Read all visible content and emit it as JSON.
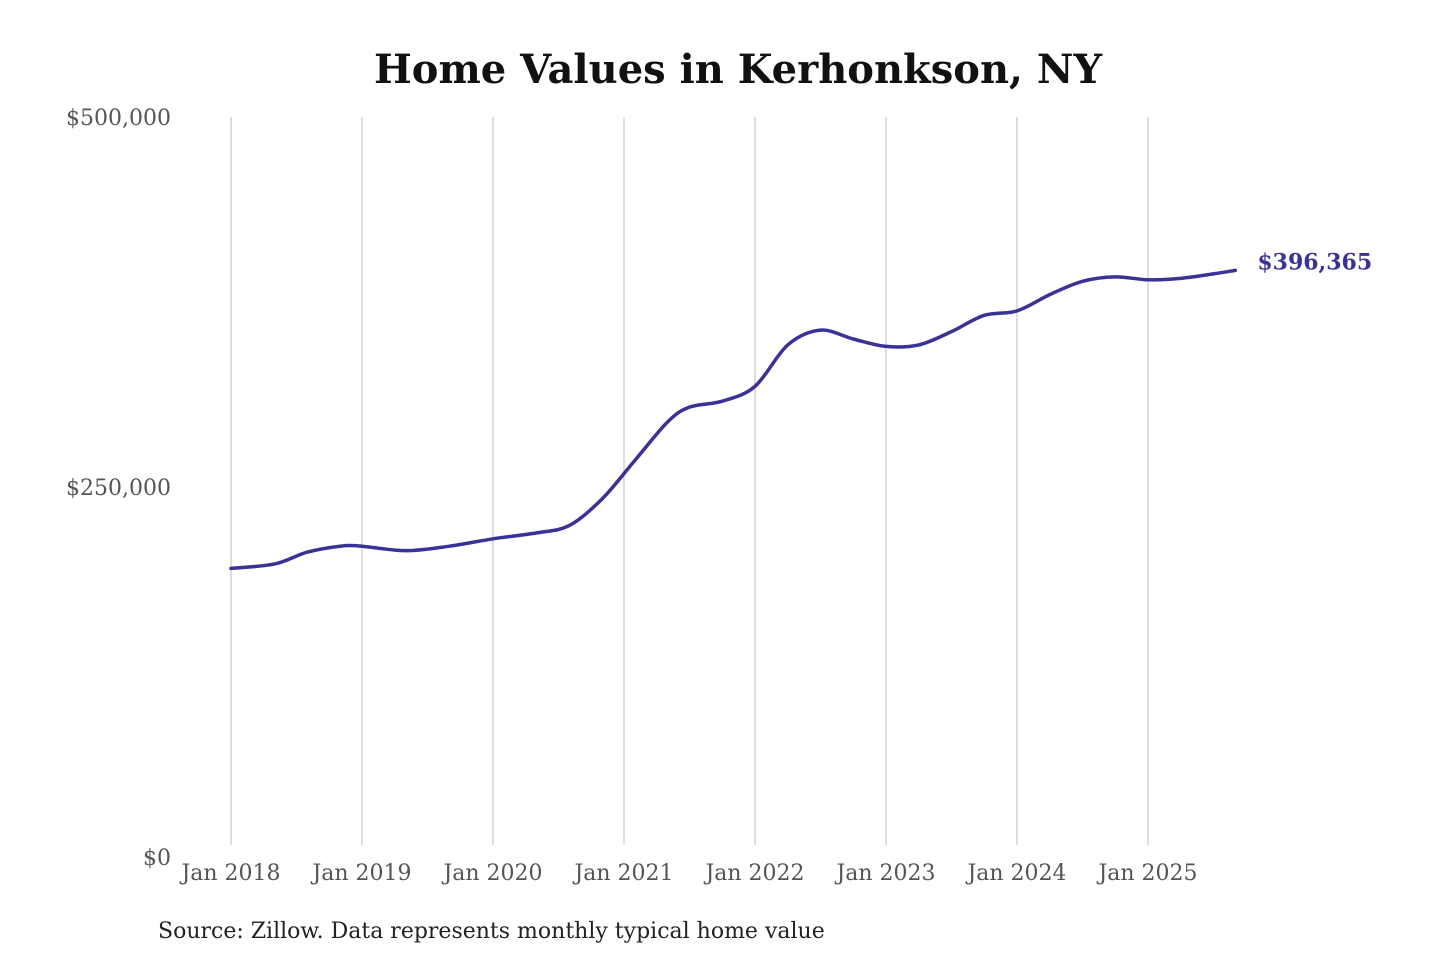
{
  "chart_data": {
    "type": "line",
    "title": "Home Values in Kerhonkson, NY",
    "xlabel": "",
    "ylabel": "",
    "ylim": [
      0,
      500000
    ],
    "y_ticks": [
      {
        "value": 0,
        "label": "$0"
      },
      {
        "value": 250000,
        "label": "$250,000"
      },
      {
        "value": 500000,
        "label": "$500,000"
      }
    ],
    "x_ticks": [
      {
        "value": "2018-01",
        "label": "Jan 2018"
      },
      {
        "value": "2019-01",
        "label": "Jan 2019"
      },
      {
        "value": "2020-01",
        "label": "Jan 2020"
      },
      {
        "value": "2021-01",
        "label": "Jan 2021"
      },
      {
        "value": "2022-01",
        "label": "Jan 2022"
      },
      {
        "value": "2023-01",
        "label": "Jan 2023"
      },
      {
        "value": "2024-01",
        "label": "Jan 2024"
      },
      {
        "value": "2025-01",
        "label": "Jan 2025"
      }
    ],
    "grid": "vertical",
    "series": [
      {
        "color": "#3a3296",
        "end_label": "$396,365",
        "points": [
          [
            "2018-01",
            195000
          ],
          [
            "2018-05",
            198000
          ],
          [
            "2018-08",
            206000
          ],
          [
            "2018-11",
            210000
          ],
          [
            "2019-01",
            210000
          ],
          [
            "2019-05",
            207000
          ],
          [
            "2019-09",
            210000
          ],
          [
            "2020-01",
            215000
          ],
          [
            "2020-05",
            219000
          ],
          [
            "2020-08",
            224000
          ],
          [
            "2020-11",
            242000
          ],
          [
            "2021-02",
            268000
          ],
          [
            "2021-05",
            294000
          ],
          [
            "2021-07",
            304000
          ],
          [
            "2021-10",
            308000
          ],
          [
            "2022-01",
            318000
          ],
          [
            "2022-04",
            346000
          ],
          [
            "2022-07",
            356000
          ],
          [
            "2022-10",
            350000
          ],
          [
            "2023-01",
            345000
          ],
          [
            "2023-04",
            346000
          ],
          [
            "2023-07",
            355000
          ],
          [
            "2023-10",
            366000
          ],
          [
            "2024-01",
            369000
          ],
          [
            "2024-04",
            380000
          ],
          [
            "2024-07",
            389000
          ],
          [
            "2024-10",
            392000
          ],
          [
            "2025-01",
            390000
          ],
          [
            "2025-04",
            391000
          ],
          [
            "2025-07",
            394000
          ],
          [
            "2025-09",
            396365
          ]
        ]
      }
    ],
    "source": "Source: Zillow. Data represents monthly typical home value"
  }
}
